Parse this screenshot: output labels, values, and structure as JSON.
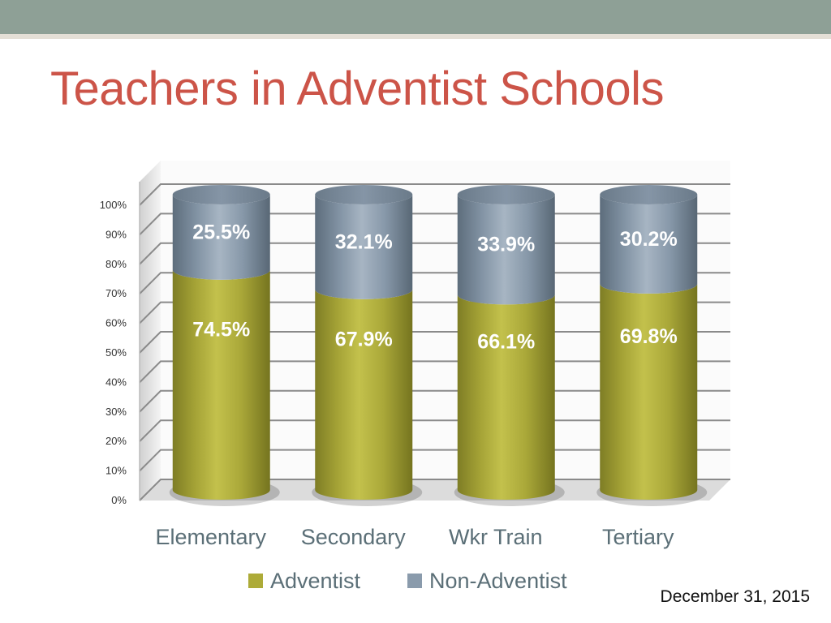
{
  "slide": {
    "title": "Teachers in Adventist Schools",
    "date": "December 31, 2015"
  },
  "colors": {
    "title": "#cc5448",
    "header_bar": "#8ea096",
    "adventist": "#b2b03a",
    "non_adventist": "#8b9cae",
    "category_text": "#5b6f77"
  },
  "chart_data": {
    "type": "bar",
    "stacked": true,
    "style": "3d-cylinder",
    "categories": [
      "Elementary",
      "Secondary",
      "Wkr Train",
      "Tertiary"
    ],
    "series": [
      {
        "name": "Adventist",
        "values": [
          74.5,
          67.9,
          66.1,
          69.8
        ],
        "labels": [
          "74.5%",
          "67.9%",
          "66.1%",
          "69.8%"
        ]
      },
      {
        "name": "Non-Adventist",
        "values": [
          25.5,
          32.1,
          33.9,
          30.2
        ],
        "labels": [
          "25.5%",
          "32.1%",
          "33.9%",
          "30.2%"
        ]
      }
    ],
    "ylim": [
      0,
      100
    ],
    "yticks": [
      "0%",
      "10%",
      "20%",
      "30%",
      "40%",
      "50%",
      "60%",
      "70%",
      "80%",
      "90%",
      "100%"
    ],
    "xlabel": "",
    "ylabel": "",
    "grid": true,
    "legend": "bottom"
  }
}
